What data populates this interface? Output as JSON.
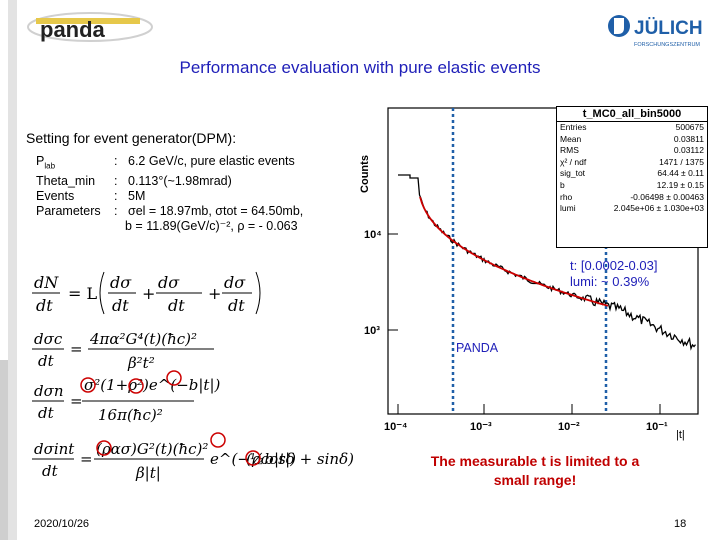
{
  "slide": {
    "title": "Performance evaluation with pure elastic events",
    "date": "2020/10/26",
    "page_number": "18"
  },
  "logos": {
    "left_text": "panda",
    "right_text": "JÜLICH",
    "right_subtext": "FORSCHUNGSZENTRUM"
  },
  "settings": {
    "heading": "Setting for event generator(DPM):",
    "rows": [
      {
        "label": "P",
        "sub": "lab",
        "sep": ":",
        "value": "6.2 GeV/c, pure elastic events"
      },
      {
        "label": "Theta_min",
        "sub": "",
        "sep": ":",
        "value": "0.113°(~1.98mrad)"
      },
      {
        "label": "Events",
        "sub": "",
        "sep": ":",
        "value": "5M"
      },
      {
        "label": "Parameters",
        "sub": "",
        "sep": ":",
        "value": "σel = 18.97mb, σtot = 64.50mb,"
      }
    ],
    "continuation": "b = 11.89(GeV/c)⁻², ρ = - 0.063"
  },
  "formulas": {
    "eq1_lhs": "dN",
    "eq1_lhs_den": "dt",
    "eq1_rhs": "= L",
    "eq2_lhs": "dσc",
    "eq3_lhs": "dσn",
    "eq4_lhs": "dσint",
    "den": "dt"
  },
  "plot": {
    "ylabel": "Counts",
    "stat_title": "t_MC0_all_bin5000",
    "stats": [
      {
        "k": "Entries",
        "v": "500675"
      },
      {
        "k": "Mean",
        "v": "0.03811"
      },
      {
        "k": "RMS",
        "v": "0.03112"
      },
      {
        "k": "χ² / ndf",
        "v": "1471 / 1375"
      },
      {
        "k": "sig_tot",
        "v": "64.44 ± 0.11"
      },
      {
        "k": "b",
        "v": "12.19 ± 0.15"
      },
      {
        "k": "rho",
        "v": "-0.06498 ± 0.00463"
      },
      {
        "k": "lumi",
        "v": "2.045e+06 ± 1.030e+03"
      }
    ],
    "t_range": "t:  [0.0002-0.03]",
    "lumi_note": "lumi: ~ 0.39%",
    "panda_label": "PANDA",
    "x_tick_labels": [
      "10⁻⁴",
      "10⁻³",
      "10⁻²",
      "10⁻¹"
    ],
    "x_unit": "|t|",
    "y_tick_labels": [
      "10⁴",
      "10³"
    ],
    "colors": {
      "curve": "#cc0000",
      "data": "#000000",
      "cut_lines": "#1f5fa8"
    }
  },
  "conclusion": {
    "line1": "The measurable t is limited to a",
    "line2": "small range!"
  }
}
